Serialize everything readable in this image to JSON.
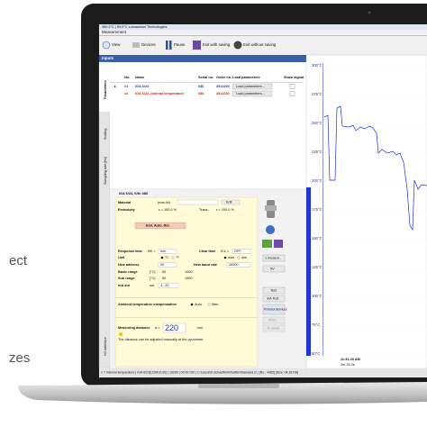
{
  "side_text": [
    "ect",
    "zes"
  ],
  "title_bar": "380.2°C | 83.0°C   Lumasense Technologies",
  "menu": "Measurement",
  "toolbar": [
    "View",
    "Devices",
    "Pause",
    "Exit with saving",
    "Exit without saving"
  ],
  "panel_title": "Inputs",
  "tabs": [
    "Parameters",
    "Scaling",
    "Sampling rate [Hz]",
    "I/O interface"
  ],
  "table": {
    "headers": [
      "No.",
      "Name",
      "Serial no.",
      "Order no.",
      "Load parameters",
      "Show signal"
    ],
    "rows": [
      [
        "#1",
        "IGA 6/23",
        "686",
        "3914230",
        "Load parameters..."
      ],
      [
        "#2",
        "IGA 6/23 -Internal temperature",
        "686",
        "3914230",
        "Load parameters..."
      ]
    ]
  },
  "device": {
    "title": "IGA 6/23, S/N: 686",
    "material": "Material",
    "material_file": "(mat.txt)",
    "edit": "Edit",
    "emissivity": "Emissivity",
    "emissivity_value": "ε = 100.0 %",
    "trans": "Trans.",
    "trans_value": "τ = 100.0 %",
    "emi_button": "Emi. Auto. Rel.",
    "response_time": "Response time",
    "t90": "t90 =",
    "t90_value": "min.",
    "clear_time": "Clear time",
    "tcl": "tCL =",
    "tcl_value": "OFF",
    "unit": "Unit",
    "unit_c": "°C",
    "unit_f": "°F",
    "max": "max",
    "min": "min",
    "new_address": "New address",
    "address_value": "00",
    "new_baud": "New baud rate",
    "baud_value": "19200",
    "basic_range": "Basic range",
    "sub_range": "Sub range",
    "range_unit": "[°C]",
    "basic_from": "50",
    "basic_to": "1000",
    "sub_from": "50",
    "sub_to": "1000",
    "ma_out": "mA out",
    "out": "out",
    "ma_value": "4...20",
    "ambient": "Ambient temperature compensation",
    "auto": "Auto.",
    "man": "Man.",
    "distance": "Measuring distance",
    "distance_a": "a =",
    "distance_value": "220",
    "distance_unit": "mm",
    "distance_note": "The distance can be adjusted manually at the pyrometer"
  },
  "buttons": [
    "1 measur..",
    "5V",
    "Test",
    "mA Test",
    "Protocol Services",
    "Print",
    "To email"
  ],
  "graph": {
    "y_labels": [
      "300°C",
      "275°C",
      "250°C",
      "225°C",
      "200°C",
      "175°C",
      "150°C",
      "125°C",
      "100°C",
      "75°C",
      "50°C"
    ],
    "time": "11:31:20 AM",
    "elapsed": "2m 33.2s"
  },
  "status_bar": "1 = Internal temperature | IGA 6/23(COM10,00) | 19200 | 00:00.030 | C:\\Users\\D.Schaeffer\\InfraWin\\Standard.i2 | [No.: 4985] [Size: 04.33 KB]"
}
